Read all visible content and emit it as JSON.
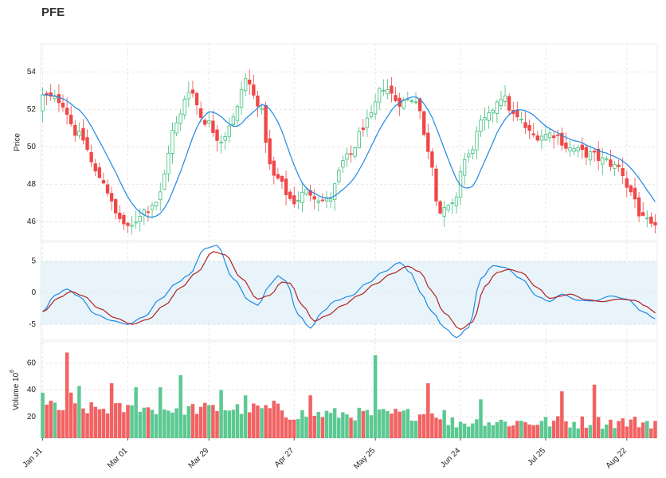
{
  "title": "PFE",
  "colors": {
    "up": "#3fbf7f",
    "down": "#f04747",
    "ma": "#1e88e5",
    "osc_fast": "#1e88e5",
    "osc_slow": "#b22222",
    "band": "#e8f4fa",
    "grid": "#e6e6e6"
  },
  "chart_data": [
    {
      "type": "candlestick",
      "title": "PFE",
      "ylabel": "Price",
      "ylim": [
        45.0,
        55.5
      ],
      "yticks": [
        46,
        48,
        50,
        52,
        54
      ],
      "grid": true,
      "overlay": {
        "type": "line",
        "description": "moving average",
        "color": "#1e88e5"
      },
      "start": "2024-01-31",
      "ohlc": [],
      "ma": []
    },
    {
      "type": "line",
      "ylim": [
        -7.5,
        8.0
      ],
      "yticks": [
        -5,
        0,
        5
      ],
      "band": [
        -5,
        5
      ],
      "grid": true,
      "series": [
        {
          "name": "",
          "color": "#1e88e5",
          "values": []
        },
        {
          "name": "",
          "color": "#b22222",
          "values": []
        }
      ]
    },
    {
      "type": "bar",
      "ylabel": "Volume",
      "ylabel_exponent": "6",
      "ylim": [
        4,
        76
      ],
      "yticks": [
        20,
        40,
        60
      ],
      "grid": true,
      "values": []
    }
  ],
  "xaxis": {
    "tick_labels": [
      "Jan 31",
      "Mar 01",
      "Mar 29",
      "Apr 27",
      "May 25",
      "Jun 24",
      "Jul 25",
      "Aug 22"
    ],
    "tick_index": [
      0,
      21,
      41,
      62,
      82,
      103,
      124,
      144
    ]
  }
}
